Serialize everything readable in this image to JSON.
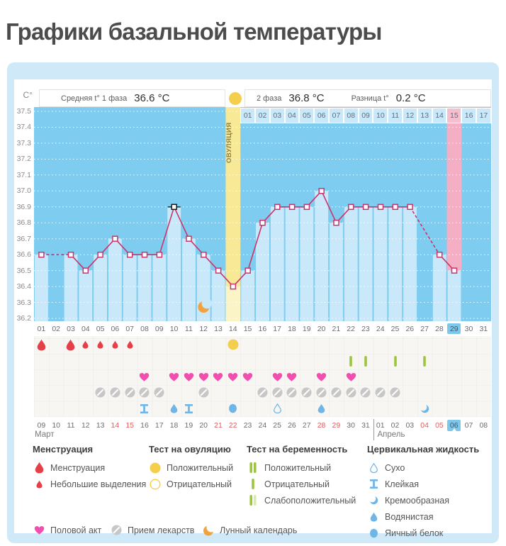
{
  "page_title": "Графики базальной температуры",
  "palette": {
    "card_bg": "#cfe9f8",
    "plot_bg": "#7ecdf0",
    "bar": "#c9e9fb",
    "ovu_col_top": "#f8e996",
    "ovu_col_bottom": "#fbf4c6",
    "pink_col": "#f5afc5",
    "pink_cell": "#f5bfd0",
    "line": "#c9356b",
    "selected": "#1a1a1a",
    "yellow": "#f4cf4d",
    "drop_red": "#e5404a",
    "heart_pink": "#f04fae",
    "pill_gray": "#c7c7c7",
    "green": "#9dc53d",
    "green_pale": "#d9e9b0",
    "cyan": "#6eb5e8",
    "moon_orange": "#f0a23e",
    "day_chip": "#7dc8ea",
    "red_date": "#e05c5c"
  },
  "header": {
    "axis_unit": "C°",
    "phase1_label": "Средняя t° 1 фаза",
    "phase1_value": "36.6 °C",
    "phase2_label": "2 фаза",
    "phase2_value": "36.8 °C",
    "diff_label": "Разница t°",
    "diff_value": "0.2 °C",
    "ovulation_label": "ОВУЛЯЦИЯ"
  },
  "chart_data": {
    "type": "line",
    "title": "",
    "ylabel": "C°",
    "ylim": [
      36.2,
      37.5
    ],
    "ytick_step": 0.1,
    "ytick_labels": [
      "37.5",
      "37.4",
      "37.3",
      "37.2",
      "37.1",
      "37.0",
      "36.9",
      "36.8",
      "36.7",
      "36.6",
      "36.5",
      "36.4",
      "36.3",
      "36.2"
    ],
    "x_cycle_days": [
      "01",
      "02",
      "03",
      "04",
      "05",
      "06",
      "07",
      "08",
      "09",
      "10",
      "11",
      "12",
      "13",
      "14",
      "15",
      "16",
      "17",
      "18",
      "19",
      "20",
      "21",
      "22",
      "23",
      "24",
      "25",
      "26",
      "27",
      "28",
      "29",
      "30",
      "31"
    ],
    "temperatures": [
      36.6,
      null,
      36.6,
      36.5,
      36.6,
      36.7,
      36.6,
      36.6,
      36.6,
      36.9,
      36.7,
      36.6,
      36.5,
      36.4,
      36.5,
      36.8,
      36.9,
      36.9,
      36.9,
      37.0,
      36.8,
      36.9,
      36.9,
      36.9,
      36.9,
      36.9,
      null,
      36.6,
      36.5,
      null,
      null
    ],
    "selected_cycle_day": 10,
    "selected_value": 36.9,
    "ovulation_cycle_day": 14,
    "highlighted_cycle_day": 29,
    "moon_cycle_day": 12,
    "phase2_day_labels": [
      "01",
      "02",
      "03",
      "04",
      "05",
      "06",
      "07",
      "08",
      "09",
      "10",
      "11",
      "12",
      "13",
      "14",
      "15",
      "16",
      "17"
    ],
    "phase2_highlight_label": "15",
    "calendar": {
      "date_labels": [
        "09",
        "10",
        "11",
        "12",
        "13",
        "14",
        "15",
        "16",
        "17",
        "18",
        "19",
        "20",
        "21",
        "22",
        "23",
        "24",
        "25",
        "26",
        "27",
        "28",
        "29",
        "30",
        "31",
        "01",
        "02",
        "03",
        "04",
        "05",
        "06",
        "07",
        "08"
      ],
      "red_columns": [
        5,
        6,
        12,
        13,
        19,
        20,
        26,
        27
      ],
      "today_column": 28,
      "months": [
        {
          "label": "Март",
          "column": 0
        },
        {
          "label": "Апрель",
          "column": 23
        }
      ],
      "month_separator_column": 23
    },
    "symbols": {
      "menstruation_heavy_days": [
        1,
        3
      ],
      "menstruation_light_days": [
        4,
        5,
        6,
        7
      ],
      "ovulation_test_positive_days": [
        14
      ],
      "pregnancy_test_negative_days": [
        22,
        23,
        25,
        27
      ],
      "intercourse_days": [
        8,
        10,
        11,
        12,
        13,
        14,
        15,
        17,
        18,
        20,
        22
      ],
      "medication_days": [
        5,
        6,
        7,
        8,
        9,
        12,
        16,
        17,
        18,
        19,
        20,
        21,
        22,
        23,
        24,
        25
      ],
      "cervical_fluid": {
        "8": "ibeam-blue",
        "10": "drop-blue",
        "11": "ibeam-blue",
        "14": "circle-blue",
        "17": "drop-outline-blue",
        "20": "drop-blue",
        "27": "crescent-blue"
      }
    }
  },
  "legend": {
    "columns": [
      {
        "title": "Менструация",
        "items": [
          {
            "icon": "drop-big",
            "label": "Менструация"
          },
          {
            "icon": "drop-small",
            "label": "Небольшие выделения"
          }
        ]
      },
      {
        "title": "Тест на овуляцию",
        "items": [
          {
            "icon": "circle-yellow",
            "label": "Положительный"
          },
          {
            "icon": "circle-yellow-outline",
            "label": "Отрицательный"
          }
        ]
      },
      {
        "title": "Тест на беременность",
        "items": [
          {
            "icon": "bars-green-2",
            "label": "Положительный"
          },
          {
            "icon": "bar-green-1",
            "label": "Отрицательный"
          },
          {
            "icon": "bars-green-weak",
            "label": "Слабоположительный"
          }
        ]
      },
      {
        "title": "Цервикальная жидкость",
        "items": [
          {
            "icon": "drop-outline-blue",
            "label": "Сухо"
          },
          {
            "icon": "ibeam-blue",
            "label": "Клейкая"
          },
          {
            "icon": "crescent-blue",
            "label": "Кремообразная"
          },
          {
            "icon": "drop-blue",
            "label": "Водянистая"
          },
          {
            "icon": "circle-blue",
            "label": "Яичный белок"
          }
        ]
      }
    ],
    "bottom_items": [
      {
        "icon": "heart-pink",
        "label": "Половой акт"
      },
      {
        "icon": "pill-gray",
        "label": "Прием лекарств"
      },
      {
        "icon": "moon-orange",
        "label": "Лунный календарь"
      }
    ]
  }
}
